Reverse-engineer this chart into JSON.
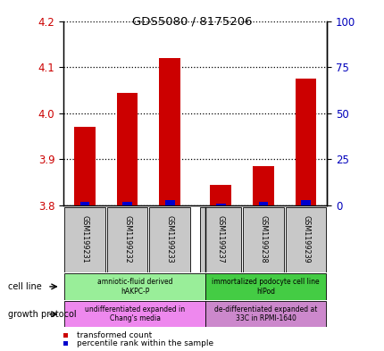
{
  "title": "GDS5080 / 8175206",
  "samples": [
    "GSM1199231",
    "GSM1199232",
    "GSM1199233",
    "GSM1199237",
    "GSM1199238",
    "GSM1199239"
  ],
  "red_values": [
    3.97,
    4.045,
    4.12,
    3.845,
    3.885,
    4.075
  ],
  "blue_values": [
    2,
    2,
    3,
    1,
    2,
    3
  ],
  "ymin": 3.8,
  "ymax": 4.2,
  "y2min": 0,
  "y2max": 100,
  "yticks_left": [
    3.8,
    3.9,
    4.0,
    4.1,
    4.2
  ],
  "yticks_right": [
    0,
    25,
    50,
    75,
    100
  ],
  "bar_color_red": "#CC0000",
  "bar_color_blue": "#0000CC",
  "tick_label_color_left": "#CC0000",
  "tick_label_color_right": "#0000BB",
  "title_color": "#000000",
  "bg_color": "#FFFFFF",
  "plot_bg": "#FFFFFF",
  "grid_color": "#000000",
  "cell_line_color_1": "#99EE99",
  "cell_line_color_2": "#44CC44",
  "growth_color_1": "#EE88EE",
  "growth_color_2": "#CC88CC",
  "sample_box_color": "#C8C8C8",
  "cell_line_text_1": "amniotic-fluid derived\nhAKPC-P",
  "cell_line_text_2": "immortalized podocyte cell line\nhIPod",
  "growth_text_1": "undifferentiated expanded in\nChang's media",
  "growth_text_2": "de-differentiated expanded at\n33C in RPMI-1640",
  "legend_red": "transformed count",
  "legend_blue": "percentile rank within the sample",
  "cell_line_label": "cell line",
  "growth_label": "growth protocol"
}
